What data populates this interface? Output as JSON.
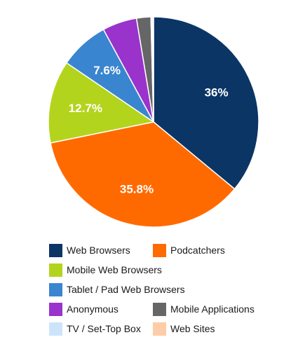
{
  "chart_data": {
    "type": "pie",
    "title": "",
    "slices": [
      {
        "label": "Web Browsers",
        "value": 36.0,
        "display": "36%",
        "color": "#0b3565"
      },
      {
        "label": "Podcatchers",
        "value": 35.8,
        "display": "35.8%",
        "color": "#ff6a00"
      },
      {
        "label": "Mobile Web Browsers",
        "value": 12.7,
        "display": "12.7%",
        "color": "#b3d41c"
      },
      {
        "label": "Tablet / Pad Web Browsers",
        "value": 7.6,
        "display": "7.6%",
        "color": "#3a85cf"
      },
      {
        "label": "Anonymous",
        "value": 5.3,
        "display": "",
        "color": "#9933cc"
      },
      {
        "label": "Mobile Applications",
        "value": 2.2,
        "display": "",
        "color": "#666666"
      },
      {
        "label": "TV / Set-Top Box",
        "value": 0.2,
        "display": "",
        "color": "#cce4fa"
      },
      {
        "label": "Web Sites",
        "value": 0.2,
        "display": "",
        "color": "#ffcca8"
      }
    ],
    "legend_position": "bottom"
  }
}
